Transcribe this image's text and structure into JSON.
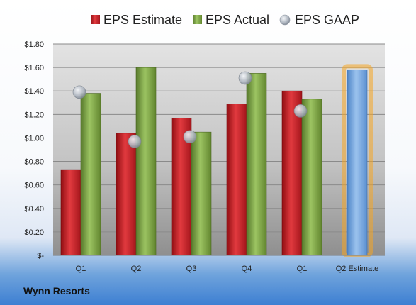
{
  "company": "Wynn Resorts",
  "colors": {
    "estimate": "#c0161e",
    "actual": "#7aa342",
    "gaap": "#a9b0ba",
    "q2_estimate": "#6d9fd8",
    "q2_estimate_glow": "#f5a623"
  },
  "chart_data": {
    "type": "bar",
    "categories": [
      "Q1",
      "Q2",
      "Q3",
      "Q4",
      "Q1",
      "Q2 Estimate"
    ],
    "series": [
      {
        "name": "EPS Estimate",
        "kind": "bar",
        "values": [
          0.73,
          1.04,
          1.17,
          1.29,
          1.4,
          1.58
        ]
      },
      {
        "name": "EPS Actual",
        "kind": "bar",
        "values": [
          1.38,
          1.6,
          1.05,
          1.55,
          1.33,
          null
        ]
      },
      {
        "name": "EPS GAAP",
        "kind": "marker",
        "values": [
          1.39,
          0.97,
          1.01,
          1.51,
          1.23,
          null
        ]
      }
    ],
    "highlight_category": "Q2 Estimate",
    "ylim": [
      0,
      1.8
    ],
    "yticks": [
      "$-",
      "$0.20",
      "$0.40",
      "$0.60",
      "$0.80",
      "$1.00",
      "$1.20",
      "$1.40",
      "$1.60",
      "$1.80"
    ],
    "legend": [
      "EPS Estimate",
      "EPS Actual",
      "EPS GAAP"
    ],
    "legend_position": "top",
    "grid": true
  }
}
